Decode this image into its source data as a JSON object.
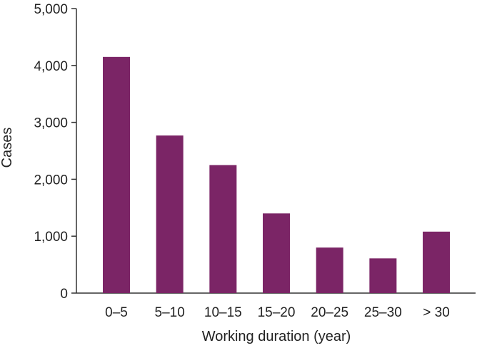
{
  "chart_data": {
    "type": "bar",
    "title": "",
    "xlabel": "Working duration (year)",
    "ylabel": "Cases",
    "categories": [
      "0–5",
      "5–10",
      "10–15",
      "15–20",
      "20–25",
      "25–30",
      "> 30"
    ],
    "values": [
      4150,
      2770,
      2250,
      1400,
      800,
      610,
      1080
    ],
    "ylim": [
      0,
      5000
    ],
    "yticks": [
      0,
      1000,
      2000,
      3000,
      4000,
      5000
    ],
    "ytick_labels": [
      "0",
      "1,000",
      "2,000",
      "3,000",
      "4,000",
      "5,000"
    ],
    "grid": false,
    "legend": "none",
    "bar_color": "#7b2566",
    "axis_color": "#333333"
  }
}
